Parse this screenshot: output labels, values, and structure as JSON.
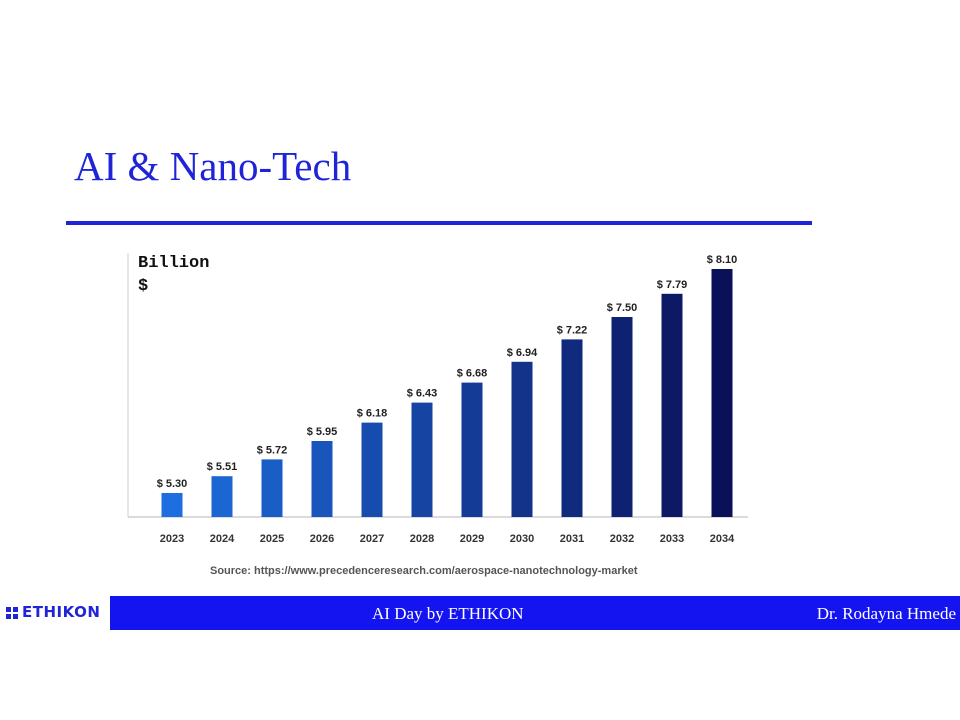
{
  "slide": {
    "title": "AI & Nano-Tech",
    "accent_color": "#1f24d8"
  },
  "chart_data": {
    "type": "bar",
    "unit_label": "Billion\n$",
    "categories": [
      "2023",
      "2024",
      "2025",
      "2026",
      "2027",
      "2028",
      "2029",
      "2030",
      "2031",
      "2032",
      "2033",
      "2034"
    ],
    "values": [
      5.3,
      5.51,
      5.72,
      5.95,
      6.18,
      6.43,
      6.68,
      6.94,
      7.22,
      7.5,
      7.79,
      8.1
    ],
    "data_labels": [
      "$ 5.30",
      "$ 5.51",
      "$ 5.72",
      "$ 5.95",
      "$ 6.18",
      "$ 6.43",
      "$ 6.68",
      "$ 6.94",
      "$ 7.22",
      "$ 7.50",
      "$ 7.79",
      "$ 8.10"
    ],
    "ylim": [
      5.0,
      8.2
    ],
    "grid": false,
    "bar_color_start": "#1e6ee0",
    "bar_color_end": "#0b1158",
    "source": "Source: https://www.precedenceresearch.com/aerospace-nanotechnology-market"
  },
  "footer": {
    "logo_text": "ETHIKON",
    "center_text": "AI Day by ETHIKON",
    "right_text": "Dr. Rodayna Hmede",
    "band_color": "#1414f0"
  }
}
